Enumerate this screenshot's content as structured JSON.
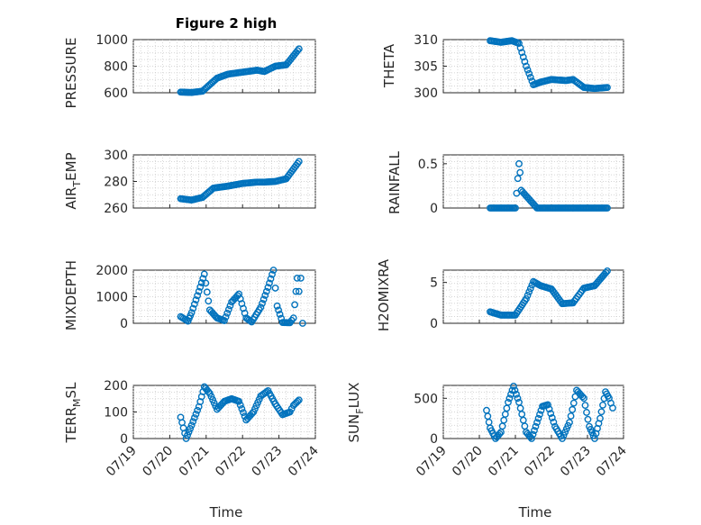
{
  "figure": {
    "title": "Figure 2 high",
    "xlabel": "Time",
    "x_tick_labels": [
      "07/19",
      "07/20",
      "07/21",
      "07/22",
      "07/23",
      "07/24"
    ],
    "marker_color": "#0072BD"
  },
  "chart_data": [
    {
      "type": "scatter",
      "ylabel": "PRESSURE",
      "ylim": [
        600,
        1000
      ],
      "yticks": [
        600,
        800,
        1000
      ],
      "grid": true,
      "series": [
        {
          "values": [
            [
              20.3,
              605
            ],
            [
              20.6,
              602
            ],
            [
              20.9,
              612
            ],
            [
              21.3,
              710
            ],
            [
              21.6,
              740
            ],
            [
              22,
              755
            ],
            [
              22.4,
              770
            ],
            [
              22.6,
              760
            ],
            [
              22.9,
              800
            ],
            [
              23.2,
              810
            ],
            [
              23.55,
              930
            ]
          ]
        }
      ]
    },
    {
      "type": "scatter",
      "ylabel": "THETA",
      "ylim": [
        300,
        310
      ],
      "yticks": [
        300,
        305,
        310
      ],
      "grid": true,
      "series": [
        {
          "values": [
            [
              20.3,
              309.8
            ],
            [
              20.6,
              309.5
            ],
            [
              20.9,
              309.8
            ],
            [
              21.1,
              309.3
            ],
            [
              21.3,
              305
            ],
            [
              21.5,
              301.5
            ],
            [
              21.7,
              302
            ],
            [
              22,
              302.5
            ],
            [
              22.4,
              302.3
            ],
            [
              22.6,
              302.5
            ],
            [
              22.9,
              301
            ],
            [
              23.2,
              300.8
            ],
            [
              23.55,
              301
            ]
          ]
        }
      ]
    },
    {
      "type": "scatter",
      "ylabel": "AIR_TEMP",
      "ylim": [
        260,
        300
      ],
      "yticks": [
        260,
        280,
        300
      ],
      "grid": true,
      "series": [
        {
          "values": [
            [
              20.3,
              267
            ],
            [
              20.6,
              266
            ],
            [
              20.9,
              268
            ],
            [
              21.2,
              275
            ],
            [
              21.6,
              276.5
            ],
            [
              22,
              278.5
            ],
            [
              22.4,
              279.5
            ],
            [
              22.6,
              279.5
            ],
            [
              22.9,
              280
            ],
            [
              23.2,
              282
            ],
            [
              23.55,
              295
            ]
          ]
        }
      ]
    },
    {
      "type": "scatter",
      "ylabel": "RAINFALL",
      "ylim": [
        0,
        0.6
      ],
      "yticks": [
        0,
        0.5
      ],
      "grid": true,
      "series": [
        {
          "values": [
            [
              20.3,
              0
            ],
            [
              20.8,
              0
            ],
            [
              21,
              0
            ],
            [
              21.1,
              0.5
            ],
            [
              21.13,
              0.4
            ],
            [
              21.16,
              0.2
            ],
            [
              21.6,
              0
            ],
            [
              22,
              0
            ],
            [
              22.5,
              0
            ],
            [
              23,
              0
            ],
            [
              23.55,
              0
            ]
          ]
        }
      ]
    },
    {
      "type": "scatter",
      "ylabel": "MIXDEPTH",
      "ylim": [
        0,
        2000
      ],
      "yticks": [
        0,
        1000,
        2000
      ],
      "grid": true,
      "series": [
        {
          "values": [
            [
              20.3,
              250
            ],
            [
              20.5,
              80
            ],
            [
              20.6,
              400
            ],
            [
              20.8,
              1200
            ],
            [
              20.95,
              1850
            ],
            [
              21.1,
              500
            ],
            [
              21.3,
              200
            ],
            [
              21.5,
              100
            ],
            [
              21.7,
              800
            ],
            [
              21.9,
              1100
            ],
            [
              22.1,
              200
            ],
            [
              22.25,
              50
            ],
            [
              22.5,
              600
            ],
            [
              22.7,
              1350
            ],
            [
              22.85,
              2000
            ],
            [
              22.95,
              650
            ],
            [
              23.1,
              30
            ],
            [
              23.3,
              20
            ],
            [
              23.4,
              200
            ],
            [
              23.5,
              1700
            ],
            [
              23.55,
              1200
            ],
            [
              23.6,
              1700
            ],
            [
              23.65,
              0
            ]
          ]
        }
      ]
    },
    {
      "type": "scatter",
      "ylabel": "H2OMIXRA",
      "ylim": [
        0,
        6.5
      ],
      "yticks": [
        0,
        5
      ],
      "grid": true,
      "series": [
        {
          "values": [
            [
              20.3,
              1.4
            ],
            [
              20.6,
              1
            ],
            [
              21,
              1
            ],
            [
              21.3,
              3
            ],
            [
              21.5,
              5.1
            ],
            [
              21.7,
              4.6
            ],
            [
              22,
              4.2
            ],
            [
              22.3,
              2.4
            ],
            [
              22.6,
              2.5
            ],
            [
              22.9,
              4.3
            ],
            [
              23.2,
              4.6
            ],
            [
              23.55,
              6.4
            ]
          ]
        }
      ]
    },
    {
      "type": "scatter",
      "ylabel": "TERR_MSL",
      "ylim": [
        0,
        200
      ],
      "yticks": [
        0,
        100,
        200
      ],
      "grid": true,
      "series": [
        {
          "values": [
            [
              20.3,
              80
            ],
            [
              20.45,
              0
            ],
            [
              20.6,
              50
            ],
            [
              20.8,
              120
            ],
            [
              20.95,
              195
            ],
            [
              21.1,
              170
            ],
            [
              21.3,
              110
            ],
            [
              21.5,
              140
            ],
            [
              21.7,
              150
            ],
            [
              21.9,
              140
            ],
            [
              22.1,
              70
            ],
            [
              22.3,
              100
            ],
            [
              22.5,
              160
            ],
            [
              22.7,
              180
            ],
            [
              22.9,
              130
            ],
            [
              23.1,
              90
            ],
            [
              23.3,
              100
            ],
            [
              23.4,
              125
            ],
            [
              23.55,
              145
            ]
          ]
        }
      ]
    },
    {
      "type": "scatter",
      "ylabel": "SUN_FLUX",
      "ylim": [
        0,
        660
      ],
      "yticks": [
        0,
        500
      ],
      "grid": true,
      "series": [
        {
          "values": [
            [
              20.2,
              350
            ],
            [
              20.3,
              130
            ],
            [
              20.45,
              0
            ],
            [
              20.6,
              80
            ],
            [
              20.8,
              450
            ],
            [
              20.95,
              650
            ],
            [
              21.1,
              450
            ],
            [
              21.3,
              80
            ],
            [
              21.45,
              0
            ],
            [
              21.6,
              200
            ],
            [
              21.75,
              400
            ],
            [
              21.9,
              420
            ],
            [
              22.1,
              150
            ],
            [
              22.3,
              0
            ],
            [
              22.5,
              200
            ],
            [
              22.7,
              600
            ],
            [
              22.9,
              500
            ],
            [
              23.05,
              150
            ],
            [
              23.2,
              0
            ],
            [
              23.35,
              250
            ],
            [
              23.5,
              580
            ],
            [
              23.6,
              500
            ],
            [
              23.7,
              380
            ]
          ]
        }
      ]
    }
  ]
}
